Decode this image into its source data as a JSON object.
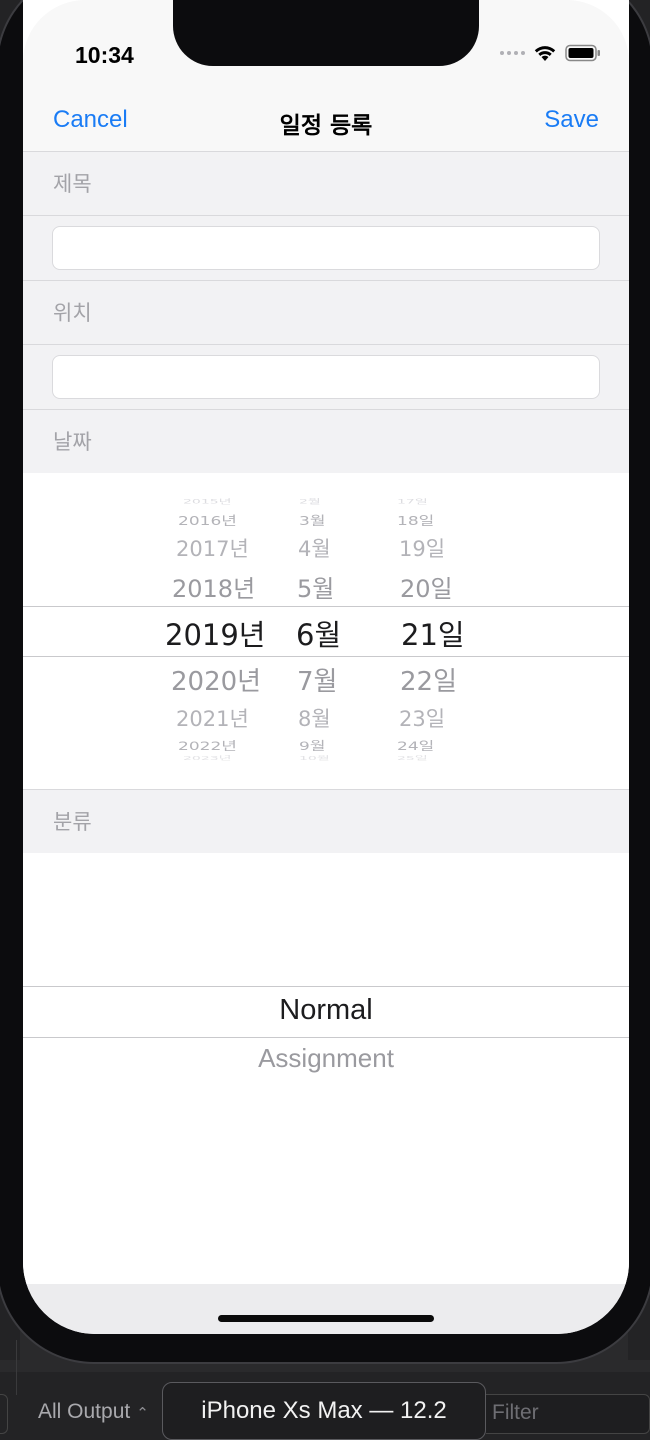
{
  "status_bar": {
    "time": "10:34"
  },
  "nav": {
    "cancel": "Cancel",
    "title": "일정 등록",
    "save": "Save"
  },
  "sections": {
    "title_label": "제목",
    "location_label": "위치",
    "date_label": "날짜",
    "category_label": "분류"
  },
  "date_picker": {
    "years": [
      "2016년",
      "2017년",
      "2018년",
      "2019년",
      "2020년",
      "2021년",
      "2022년"
    ],
    "months": [
      "3월",
      "4월",
      "5월",
      "6월",
      "7월",
      "8월",
      "9월"
    ],
    "days": [
      "18일",
      "19일",
      "20일",
      "21일",
      "22일",
      "23일",
      "24일"
    ],
    "selected": {
      "year": "2019년",
      "month": "6월",
      "day": "21일"
    }
  },
  "category_picker": {
    "selected": "Normal",
    "options": [
      "Normal",
      "Assignment"
    ]
  },
  "xcode": {
    "output_label": "All Output",
    "device": "iPhone Xs Max — 12.2",
    "filter_placeholder": "Filter"
  },
  "colors": {
    "accent": "#1a7cf5",
    "section_bg": "#f2f2f4",
    "label_gray": "#a3a3a8"
  },
  "icons": [
    "wifi-icon",
    "battery-icon",
    "signal-icon"
  ]
}
